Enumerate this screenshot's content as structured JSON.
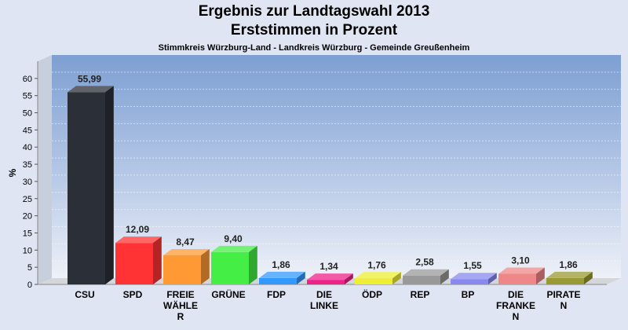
{
  "header": {
    "title_line1": "Ergebnis zur Landtagswahl 2013",
    "title_line2": "Erststimmen in Prozent",
    "subtitle": "Stimmkreis Würzburg-Land - Landkreis Würzburg - Gemeinde Greußenheim"
  },
  "chart_data": {
    "type": "bar",
    "ylabel": "%",
    "ylim": [
      0,
      65
    ],
    "yticks": [
      0,
      5,
      10,
      15,
      20,
      25,
      30,
      35,
      40,
      45,
      50,
      55,
      60
    ],
    "grid": true,
    "categories": [
      [
        "CSU"
      ],
      [
        "SPD"
      ],
      [
        "FREIE",
        "WÄHLE",
        "R"
      ],
      [
        "GRÜNE"
      ],
      [
        "FDP"
      ],
      [
        "DIE",
        "LINKE"
      ],
      [
        "ÖDP"
      ],
      [
        "REP"
      ],
      [
        "BP"
      ],
      [
        "DIE",
        "FRANKE",
        "N"
      ],
      [
        "PIRATE",
        "N"
      ]
    ],
    "values": [
      55.99,
      12.09,
      8.47,
      9.4,
      1.86,
      1.34,
      1.76,
      2.58,
      1.55,
      3.1,
      1.86
    ],
    "value_labels": [
      "55,99",
      "12,09",
      "8,47",
      "9,40",
      "1,86",
      "1,34",
      "1,76",
      "2,58",
      "1,55",
      "3,10",
      "1,86"
    ],
    "colors": [
      "#2b2f38",
      "#ff3333",
      "#ff9933",
      "#44ee44",
      "#3399ff",
      "#ee2288",
      "#eeee33",
      "#999999",
      "#8888ee",
      "#ee8888",
      "#999933"
    ]
  }
}
